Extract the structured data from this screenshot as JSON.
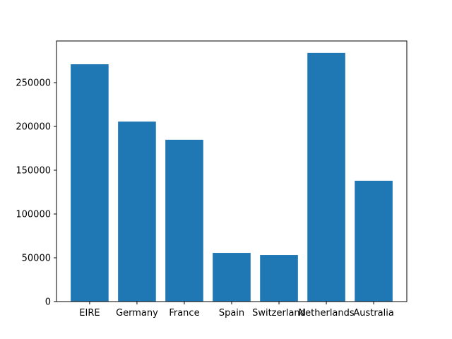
{
  "chart_data": {
    "type": "bar",
    "categories": [
      "EIRE",
      "Germany",
      "France",
      "Spain",
      "Switzerland",
      "Netherlands",
      "Australia"
    ],
    "values": [
      271000,
      205500,
      184800,
      55600,
      53200,
      284000,
      138000
    ],
    "ylim": [
      0,
      297600
    ],
    "yticks": [
      0,
      50000,
      100000,
      150000,
      200000,
      250000
    ],
    "ytick_labels": [
      "0",
      "50000",
      "100000",
      "150000",
      "200000",
      "250000"
    ],
    "bar_color": "#1f77b4",
    "grid": false
  }
}
